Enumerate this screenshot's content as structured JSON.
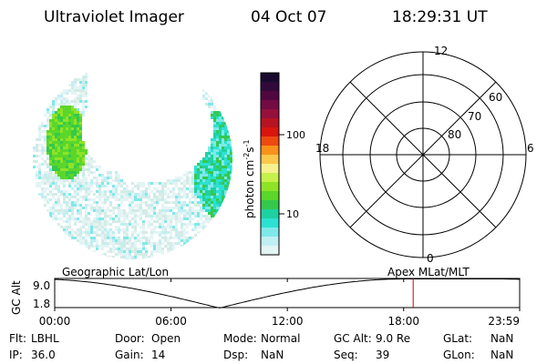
{
  "header": {
    "instrument": "Ultraviolet Imager",
    "date": "04 Oct 07",
    "time": "18:29:31 UT"
  },
  "colorbar": {
    "unit_label_main": "photon cm",
    "unit_exp1": "-2",
    "unit_mid": "s",
    "unit_exp2": "-1",
    "tick_labels": [
      "100",
      "10"
    ],
    "colors_top_to_bottom": [
      "#1a0b2e",
      "#2f0a3a",
      "#50073f",
      "#740b45",
      "#95103b",
      "#b81322",
      "#d8160f",
      "#ef4912",
      "#f8921a",
      "#fbc84b",
      "#f6f08d",
      "#c6f04a",
      "#8fe327",
      "#5bd62a",
      "#35c94c",
      "#1fd1a1",
      "#2ce1d2",
      "#7fe9ea",
      "#bfeff2",
      "#e4f4f5"
    ]
  },
  "polar_plot": {
    "hour_labels": {
      "top": "12",
      "bottom": "0",
      "left": "18",
      "right": "6"
    },
    "lat_labels": [
      "60",
      "70",
      "80"
    ]
  },
  "orbit_strip": {
    "left_title": "Geographic Lat/Lon",
    "right_title": "Apex MLat/MLT",
    "y_axis_label": "GC Alt",
    "y_ticks": [
      "9.0",
      "1.8"
    ],
    "x_ticks": [
      "00:00",
      "06:00",
      "12:00",
      "18:00",
      "23:59"
    ],
    "marker_time_hours": 18.49,
    "marker_color": "#cc0000"
  },
  "info_table": [
    [
      {
        "key": "Flt:",
        "value": "LBHL"
      },
      {
        "key": "Door:",
        "value": "Open"
      },
      {
        "key": "Mode:",
        "value": "Normal"
      },
      {
        "key": "GC Alt:",
        "value": "9.0 Re"
      },
      {
        "key": "GLat:",
        "value": "NaN"
      }
    ],
    [
      {
        "key": "IP:",
        "value": "36.0"
      },
      {
        "key": "Gain:",
        "value": "14"
      },
      {
        "key": "Dsp:",
        "value": "NaN"
      },
      {
        "key": "Seq:",
        "value": "39"
      },
      {
        "key": "GLon:",
        "value": "NaN"
      }
    ]
  ]
}
